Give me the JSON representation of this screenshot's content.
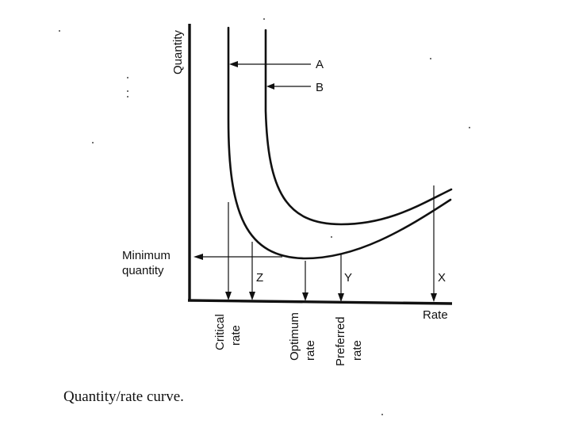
{
  "diagram": {
    "y_axis_label": "Quantity",
    "x_axis_label": "Rate",
    "curve_a_label": "A",
    "curve_b_label": "B",
    "minimum_label_line1": "Minimum",
    "minimum_label_line2": "quantity",
    "z_label": "Z",
    "y_label": "Y",
    "x_label": "X",
    "critical_line1": "Critical",
    "critical_line2": "rate",
    "optimum_line1": "Optimum",
    "optimum_line2": "rate",
    "preferred_line1": "Preferred",
    "preferred_line2": "rate",
    "caption": "Quantity/rate curve."
  }
}
